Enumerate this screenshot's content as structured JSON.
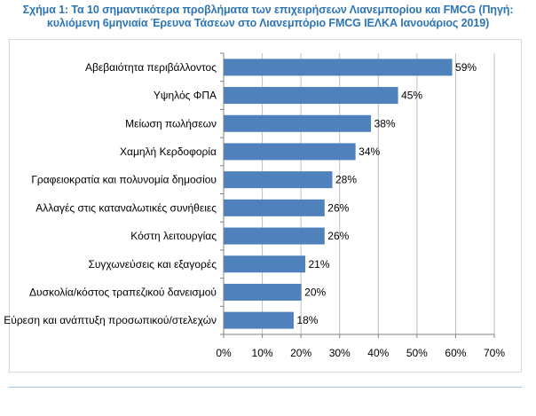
{
  "header": {
    "line1": "Σχήμα 1: Τα 10 σημαντικότερα προβλήματα των επιχειρήσεων Λιανεμπορίου και FMCG (Πηγή:",
    "line2": "κυλιόμενη 6μηνιαία Έρευνα Τάσεων στο Λιανεμπόριο FMCG ΙΕΛΚΑ Ιανουάριος 2019)"
  },
  "chart_data": {
    "type": "bar",
    "orientation": "horizontal",
    "categories": [
      "Αβεβαιότητα περιβάλλοντος",
      "Υψηλός ΦΠΑ",
      "Μείωση πωλήσεων",
      "Χαμηλή Κερδοφορία",
      "Γραφειοκρατία και πολυνομία δημοσίου",
      "Αλλαγές στις καταναλωτικές συνήθειες",
      "Κόστη λειτουργίας",
      "Συγχωνεύσεις και εξαγορές",
      "Δυσκολία/κόστος τραπεζικού δανεισμού",
      "Εύρεση και ανάπτυξη προσωπικού/στελεχών"
    ],
    "values": [
      59,
      45,
      38,
      34,
      28,
      26,
      26,
      21,
      20,
      18
    ],
    "data_labels": [
      "59%",
      "45%",
      "38%",
      "34%",
      "28%",
      "26%",
      "26%",
      "21%",
      "20%",
      "18%"
    ],
    "xlim": [
      0,
      70
    ],
    "x_ticks": [
      "0%",
      "10%",
      "20%",
      "30%",
      "40%",
      "50%",
      "60%",
      "70%"
    ],
    "grid": "vertical",
    "bar_color": "#4F81BD",
    "grid_color": "#bfbfbf"
  }
}
